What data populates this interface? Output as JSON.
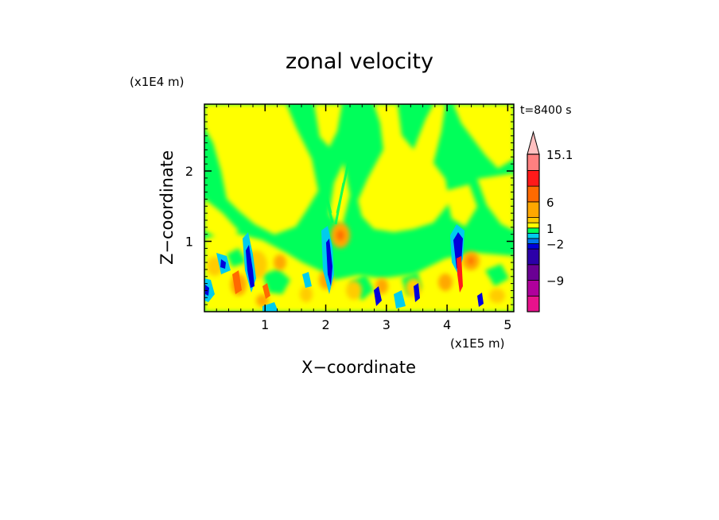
{
  "chart_data": {
    "type": "heatmap",
    "title": "zonal velocity",
    "time_label": "t=8400 s",
    "xlabel": "X−coordinate",
    "ylabel": "Z−coordinate",
    "x_scale_label": "(x1E5 m)",
    "y_scale_label": "(x1E4 m)",
    "xlim": [
      0,
      5.1
    ],
    "ylim": [
      0,
      2.95
    ],
    "x_ticks": [
      {
        "value": 1,
        "label": "1"
      },
      {
        "value": 2,
        "label": "2"
      },
      {
        "value": 3,
        "label": "3"
      },
      {
        "value": 4,
        "label": "4"
      },
      {
        "value": 5,
        "label": "5"
      }
    ],
    "y_ticks": [
      {
        "value": 1,
        "label": "1"
      },
      {
        "value": 2,
        "label": "2"
      }
    ],
    "colorbar": {
      "levels": [
        -15,
        -12,
        -9,
        -6,
        -3,
        -2,
        -1,
        0,
        1,
        2,
        3,
        6,
        9,
        12,
        15.1
      ],
      "colors": [
        "#e8128c",
        "#b0009c",
        "#6a0094",
        "#2c00a8",
        "#0000dc",
        "#0077ee",
        "#00ccee",
        "#00ff5a",
        "#ffff00",
        "#ffcc00",
        "#ffa800",
        "#ff6a00",
        "#ff1a1a",
        "#ff8080",
        "#ffc0c0"
      ],
      "labeled_levels": [
        {
          "value": 15.1,
          "label": "15.1"
        },
        {
          "value": 6,
          "label": "6"
        },
        {
          "value": 1,
          "label": "1"
        },
        {
          "value": -2,
          "label": "−2"
        },
        {
          "value": -9,
          "label": "−9"
        }
      ]
    }
  }
}
